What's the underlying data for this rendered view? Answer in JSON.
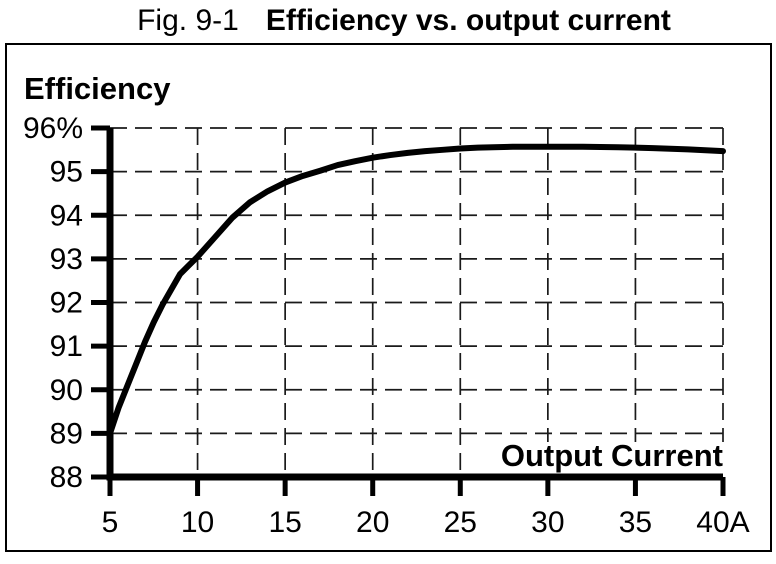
{
  "title": {
    "prefix": "Fig. 9-1",
    "main": "Efficiency vs. output current"
  },
  "chart_data": {
    "type": "line",
    "title": "Fig. 9-1 Efficiency vs. output current",
    "xlabel": "Output Current",
    "ylabel": "Efficiency",
    "x_unit": "A",
    "y_unit": "%",
    "xlim": [
      5,
      40
    ],
    "ylim": [
      88,
      96
    ],
    "x_ticks": [
      5,
      10,
      15,
      20,
      25,
      30,
      35,
      40
    ],
    "x_tick_labels": [
      "5",
      "10",
      "15",
      "20",
      "25",
      "30",
      "35",
      "40A"
    ],
    "y_ticks": [
      88,
      89,
      90,
      91,
      92,
      93,
      94,
      95,
      96
    ],
    "y_tick_labels": [
      "88",
      "89",
      "90",
      "91",
      "92",
      "93",
      "94",
      "95",
      "96%"
    ],
    "grid": "dashed",
    "legend": "none",
    "line_color": "#000000",
    "series": [
      {
        "name": "Efficiency",
        "x": [
          5,
          5.5,
          6,
          6.5,
          7,
          7.5,
          8,
          8.5,
          9,
          9.5,
          10,
          11,
          12,
          13,
          14,
          15,
          16,
          17,
          18,
          19,
          20,
          21,
          22,
          23,
          24,
          25,
          26,
          28,
          30,
          32,
          34,
          36,
          38,
          40
        ],
        "y": [
          89.0,
          89.6,
          90.1,
          90.6,
          91.1,
          91.55,
          91.95,
          92.3,
          92.65,
          92.85,
          93.05,
          93.5,
          93.95,
          94.3,
          94.55,
          94.75,
          94.9,
          95.02,
          95.15,
          95.24,
          95.32,
          95.38,
          95.43,
          95.47,
          95.5,
          95.53,
          95.55,
          95.57,
          95.57,
          95.57,
          95.56,
          95.54,
          95.51,
          95.47
        ]
      }
    ]
  }
}
